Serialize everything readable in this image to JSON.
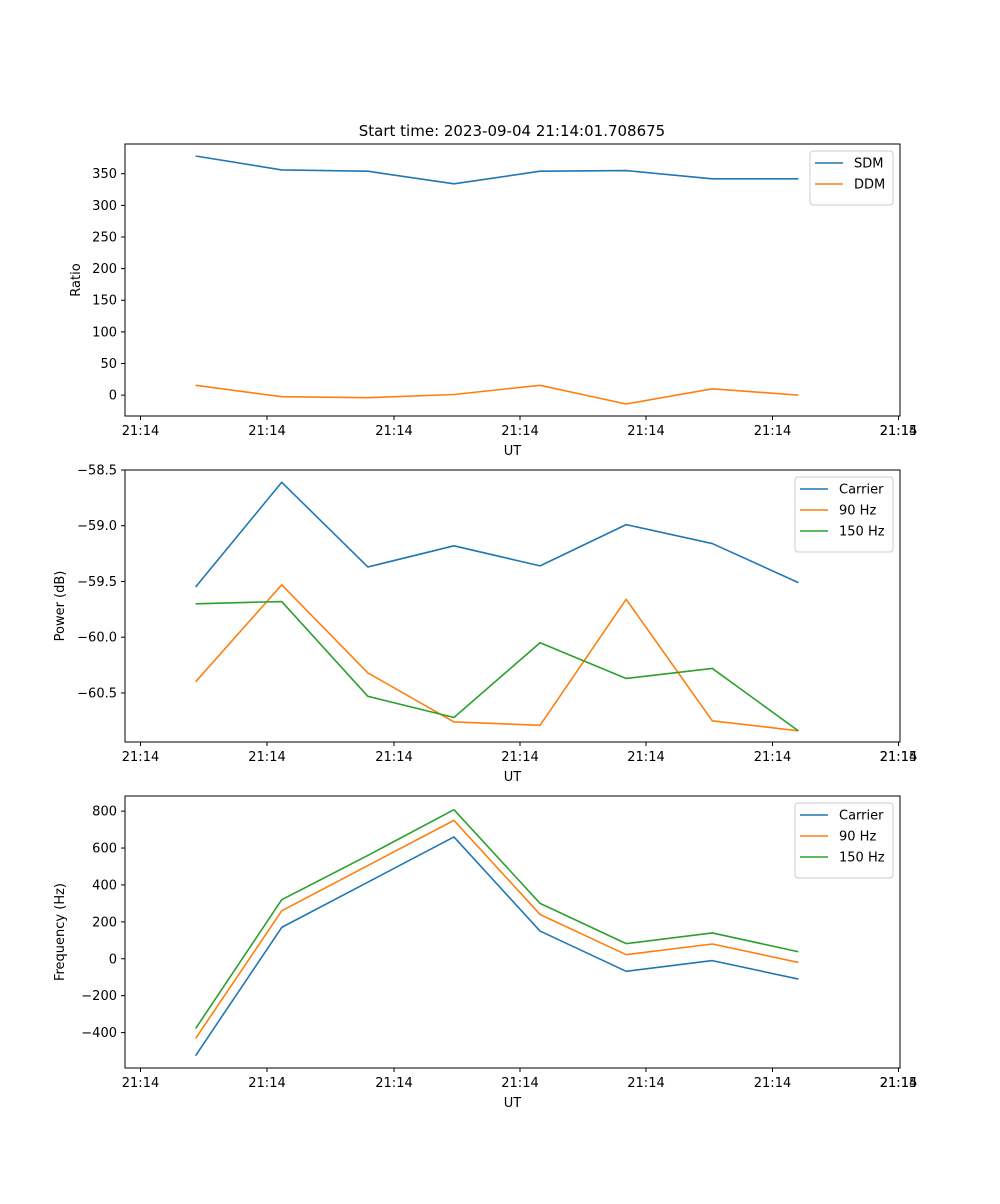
{
  "figure": {
    "title": "Start time: 2023-09-04 21:14:01.708675"
  },
  "colors": {
    "blue": "#1f77b4",
    "orange": "#ff7f0e",
    "green": "#2ca02c"
  },
  "chart_data": [
    {
      "type": "line",
      "title": "Start time: 2023-09-04 21:14:01.708675",
      "xlabel": "UT",
      "ylabel": "Ratio",
      "xtick_labels": [
        "21:14",
        "21:14",
        "21:14",
        "21:14",
        "21:14",
        "21:14",
        "21:14"
      ],
      "xtick_last": "21:15",
      "x": [
        1,
        2,
        3,
        4,
        5,
        6,
        7,
        8
      ],
      "xlim": [
        0.18,
        9.18
      ],
      "ylim": [
        -33,
        397
      ],
      "yticks": [
        0,
        50,
        100,
        150,
        200,
        250,
        300,
        350
      ],
      "legend": "top-right",
      "series": [
        {
          "name": "SDM",
          "color": "#1f77b4",
          "values": [
            378,
            356,
            354,
            334,
            354,
            355,
            342,
            342
          ]
        },
        {
          "name": "DDM",
          "color": "#ff7f0e",
          "values": [
            15.5,
            -2.5,
            -4,
            1,
            15.5,
            -14,
            10,
            0
          ]
        }
      ]
    },
    {
      "type": "line",
      "title": "",
      "xlabel": "UT",
      "ylabel": "Power (dB)",
      "xtick_labels": [
        "21:14",
        "21:14",
        "21:14",
        "21:14",
        "21:14",
        "21:14",
        "21:14"
      ],
      "xtick_last": "21:15",
      "x": [
        1,
        2,
        3,
        4,
        5,
        6,
        7,
        8
      ],
      "xlim": [
        0.18,
        9.18
      ],
      "ylim": [
        -60.94,
        -58.5
      ],
      "yticks": [
        -60.5,
        -60.0,
        -59.5,
        -59.0,
        -58.5
      ],
      "ytick_labels": [
        "−60.5",
        "−60.0",
        "−59.5",
        "−59.0",
        "−58.5"
      ],
      "legend": "top-right",
      "series": [
        {
          "name": "Carrier",
          "color": "#1f77b4",
          "values": [
            -59.55,
            -58.61,
            -59.37,
            -59.18,
            -59.36,
            -58.99,
            -59.16,
            -59.51
          ]
        },
        {
          "name": "90 Hz",
          "color": "#ff7f0e",
          "values": [
            -60.4,
            -59.53,
            -60.32,
            -60.76,
            -60.79,
            -59.66,
            -60.75,
            -60.84
          ]
        },
        {
          "name": "150 Hz",
          "color": "#2ca02c",
          "values": [
            -59.7,
            -59.68,
            -60.53,
            -60.72,
            -60.05,
            -60.37,
            -60.28,
            -60.84
          ]
        }
      ]
    },
    {
      "type": "line",
      "title": "",
      "xlabel": "UT",
      "ylabel": "Frequency (Hz)",
      "xtick_labels": [
        "21:14",
        "21:14",
        "21:14",
        "21:14",
        "21:14",
        "21:14",
        "21:14"
      ],
      "xtick_last": "21:15",
      "x": [
        1,
        2,
        3,
        4,
        5,
        6,
        7,
        8
      ],
      "xlim": [
        0.18,
        9.18
      ],
      "ylim": [
        -592,
        882
      ],
      "yticks": [
        -400,
        -200,
        0,
        200,
        400,
        600,
        800
      ],
      "ytick_labels": [
        "−400",
        "−200",
        "0",
        "200",
        "400",
        "600",
        "800"
      ],
      "legend": "top-right",
      "series": [
        {
          "name": "Carrier",
          "color": "#1f77b4",
          "values": [
            -525,
            170,
            415,
            660,
            150,
            -68,
            -10,
            -110
          ]
        },
        {
          "name": "90 Hz",
          "color": "#ff7f0e",
          "values": [
            -432,
            260,
            505,
            750,
            240,
            22,
            80,
            -20
          ]
        },
        {
          "name": "150 Hz",
          "color": "#2ca02c",
          "values": [
            -378,
            320,
            560,
            808,
            300,
            82,
            140,
            38
          ]
        }
      ]
    }
  ]
}
